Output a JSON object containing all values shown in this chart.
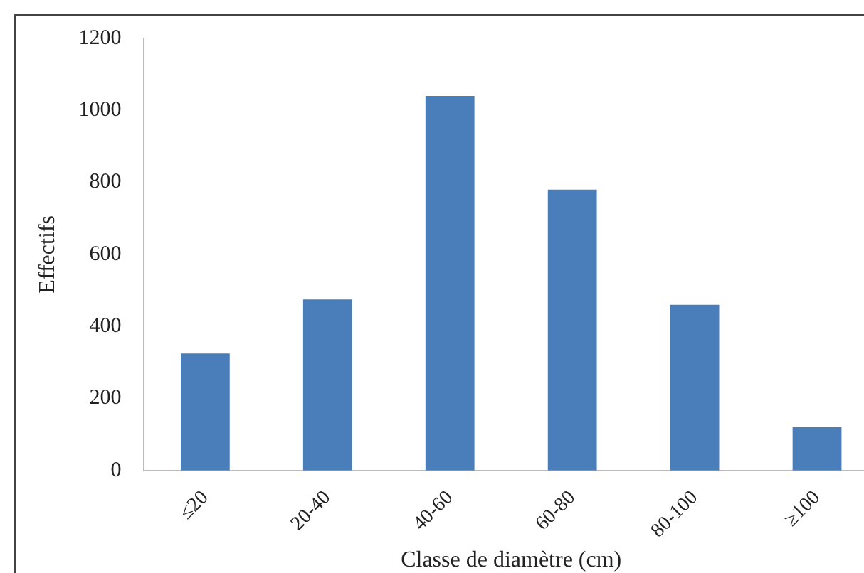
{
  "chart_data": {
    "type": "bar",
    "xlabel": "Classe de diamètre (cm)",
    "ylabel": "Effectifs",
    "categories": [
      "≤20",
      "20-40",
      "40-60",
      "60-80",
      "80-100",
      "≥100"
    ],
    "values": [
      325,
      475,
      1040,
      780,
      460,
      120
    ],
    "color": "#4a7ebb",
    "ylim": [
      0,
      1200
    ],
    "yticks": [
      0,
      200,
      400,
      600,
      800,
      1000,
      1200
    ],
    "grid": false,
    "legend": false
  }
}
